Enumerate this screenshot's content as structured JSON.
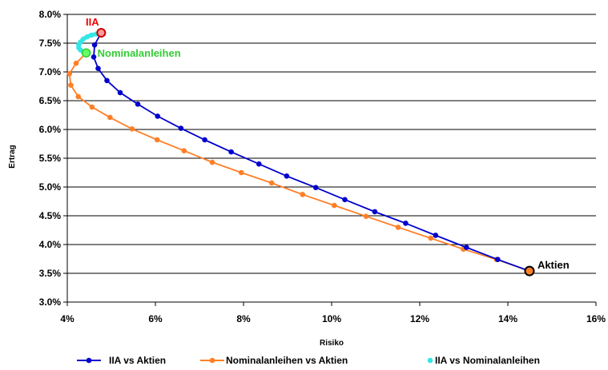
{
  "chart_data": {
    "type": "line",
    "title": "",
    "xlabel": "Risiko",
    "ylabel": "Ertrag",
    "xlim": [
      4,
      16
    ],
    "ylim": [
      3.0,
      8.0
    ],
    "x_ticks": [
      4,
      6,
      8,
      10,
      12,
      14,
      16
    ],
    "y_ticks": [
      3.0,
      3.5,
      4.0,
      4.5,
      5.0,
      5.5,
      6.0,
      6.5,
      7.0,
      7.5,
      8.0
    ],
    "x_tick_labels": [
      "4%",
      "6%",
      "8%",
      "10%",
      "12%",
      "14%",
      "16%"
    ],
    "y_tick_labels": [
      "3.0%",
      "3.5%",
      "4.0%",
      "4.5%",
      "5.0%",
      "5.5%",
      "6.0%",
      "6.5%",
      "7.0%",
      "7.5%",
      "8.0%"
    ],
    "grid": "horizontal",
    "legend_position": "bottom",
    "series": [
      {
        "name": "IIA vs Aktien",
        "color": "#0000cc",
        "x": [
          4.77,
          4.62,
          4.6,
          4.7,
          4.9,
          5.2,
          5.6,
          6.05,
          6.58,
          7.12,
          7.72,
          8.35,
          8.98,
          9.64,
          10.3,
          10.98,
          11.68,
          12.36,
          13.06,
          13.77,
          14.49
        ],
        "y": [
          7.68,
          7.47,
          7.26,
          7.06,
          6.85,
          6.64,
          6.44,
          6.23,
          6.02,
          5.82,
          5.61,
          5.4,
          5.19,
          4.99,
          4.78,
          4.57,
          4.37,
          4.16,
          3.95,
          3.74,
          3.54
        ]
      },
      {
        "name": "Nominalanleihen vs Aktien",
        "color": "#ff7f27",
        "x": [
          4.43,
          4.2,
          4.05,
          4.08,
          4.25,
          4.56,
          4.97,
          5.47,
          6.04,
          6.65,
          7.29,
          7.95,
          8.64,
          9.34,
          10.06,
          10.78,
          11.51,
          12.25,
          12.99,
          13.74,
          14.49
        ],
        "y": [
          7.33,
          7.15,
          6.97,
          6.77,
          6.57,
          6.39,
          6.21,
          6.01,
          5.82,
          5.63,
          5.43,
          5.25,
          5.07,
          4.87,
          4.68,
          4.49,
          4.3,
          4.11,
          3.92,
          3.74,
          3.54
        ]
      },
      {
        "name": "IIA vs Nominalanleihen",
        "color": "#33e6e6",
        "x": [
          4.77,
          4.66,
          4.55,
          4.45,
          4.36,
          4.3,
          4.26,
          4.26,
          4.3,
          4.36,
          4.43
        ],
        "y": [
          7.68,
          7.66,
          7.64,
          7.61,
          7.57,
          7.52,
          7.47,
          7.42,
          7.38,
          7.35,
          7.33
        ]
      }
    ],
    "annotations": [
      {
        "text": "IIA",
        "color": "#ee0000",
        "x": 4.77,
        "y": 7.68
      },
      {
        "text": "Nominalanleihen",
        "color": "#33cc33",
        "x": 4.43,
        "y": 7.33
      },
      {
        "text": "Aktien",
        "color": "#000000",
        "x": 14.49,
        "y": 3.54
      }
    ]
  }
}
